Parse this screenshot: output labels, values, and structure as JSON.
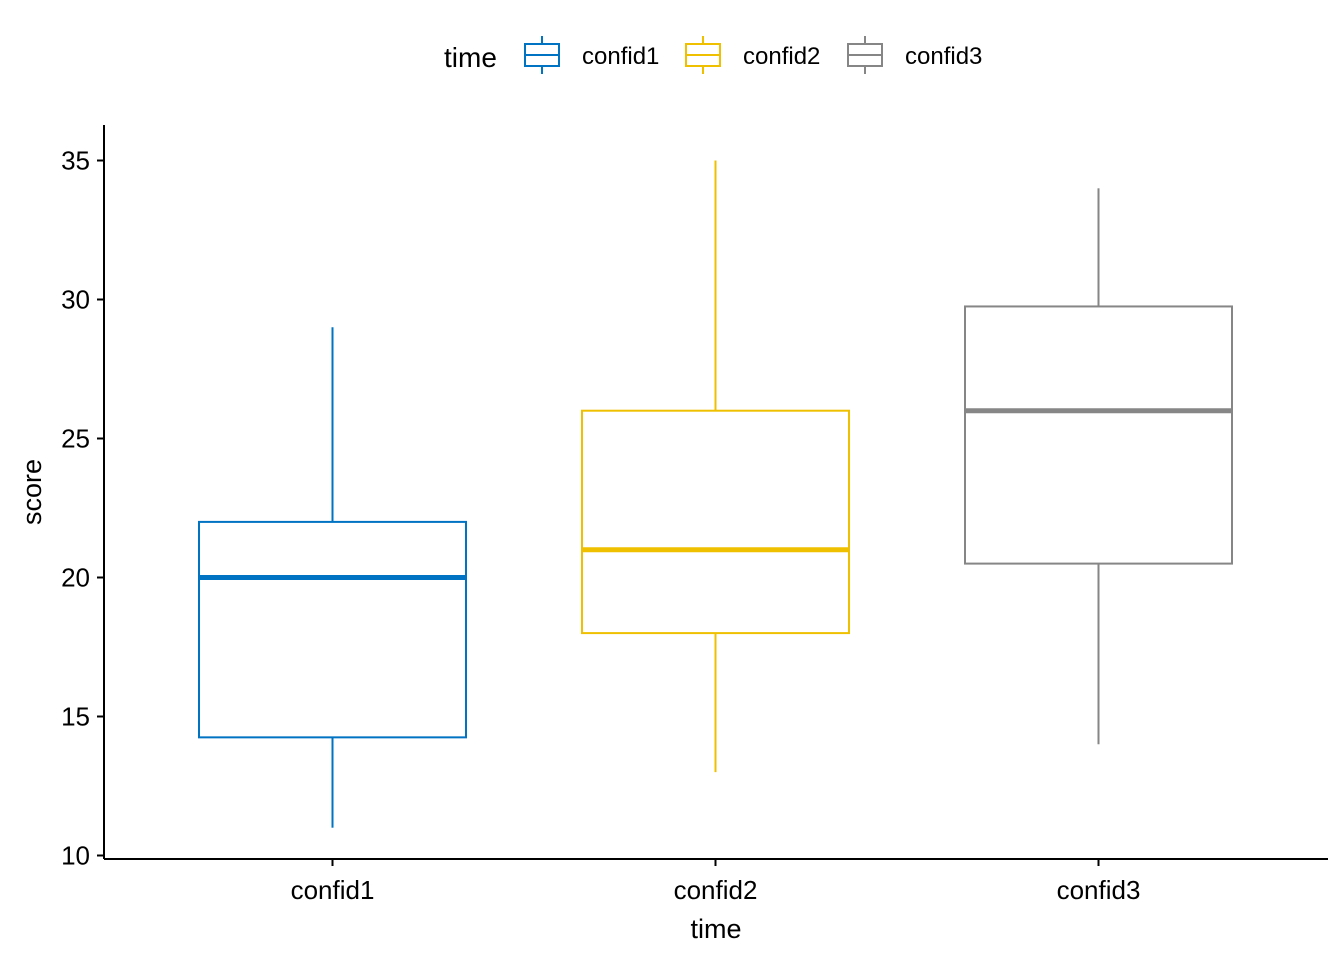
{
  "chart_data": {
    "type": "box",
    "title": "",
    "xlabel": "time",
    "ylabel": "score",
    "ylim": [
      10,
      36.2
    ],
    "yticks": [
      10,
      15,
      20,
      25,
      30,
      35
    ],
    "categories": [
      "confid1",
      "confid2",
      "confid3"
    ],
    "legend": {
      "title": "time",
      "position": "top",
      "entries": [
        "confid1",
        "confid2",
        "confid3"
      ]
    },
    "grid": false,
    "series": [
      {
        "name": "confid1",
        "color": "#0073C2",
        "whisker_low": 11,
        "q1": 14.25,
        "median": 20,
        "q3": 22,
        "whisker_high": 29
      },
      {
        "name": "confid2",
        "color": "#EFC000",
        "whisker_low": 13,
        "q1": 18,
        "median": 21,
        "q3": 26,
        "whisker_high": 35
      },
      {
        "name": "confid3",
        "color": "#868686",
        "whisker_low": 14,
        "q1": 20.5,
        "median": 26,
        "q3": 29.75,
        "whisker_high": 34
      }
    ]
  }
}
